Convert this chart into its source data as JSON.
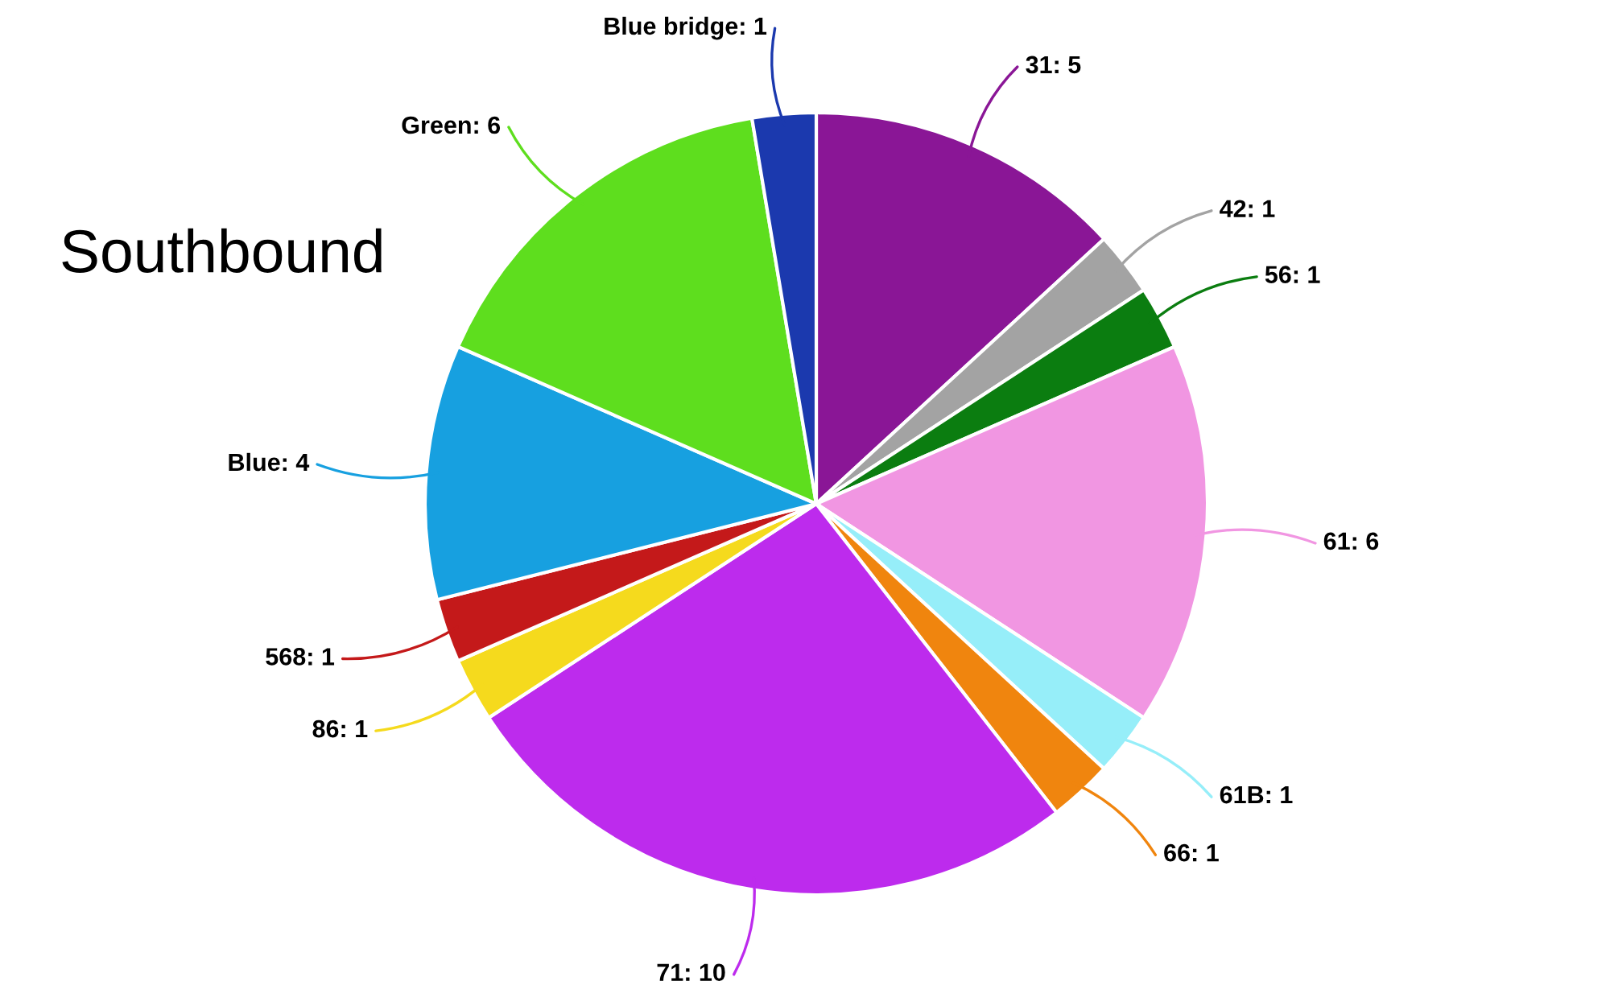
{
  "chart_data": {
    "type": "pie",
    "title": "Southbound",
    "categories": [
      "31: 5",
      "42: 1",
      "56: 1",
      "61: 6",
      "61B: 1",
      "66: 1",
      "71: 10",
      "86: 1",
      "568: 1",
      "Blue: 4",
      "Green: 6",
      "Blue bridge: 1"
    ],
    "values": [
      5,
      1,
      1,
      6,
      1,
      1,
      10,
      1,
      1,
      4,
      6,
      1
    ],
    "colors": [
      "#8a1696",
      "#a3a3a3",
      "#0b7d10",
      "#f196e2",
      "#96eef9",
      "#f0850e",
      "#bd2bed",
      "#f5da1d",
      "#c4191a",
      "#17a0e0",
      "#5ede1e",
      "#1b39ae"
    ]
  }
}
